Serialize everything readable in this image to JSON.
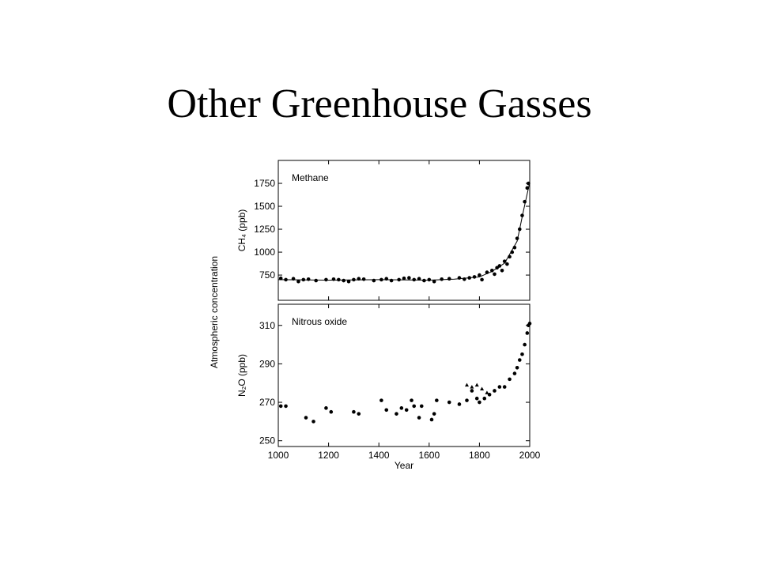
{
  "title": "Other Greenhouse Gasses",
  "shared_ylabel": "Atmospheric concentration",
  "chart_data": [
    {
      "type": "scatter",
      "annotation": "Methane",
      "ylabel": "CH₄ (ppb)",
      "xlim": [
        1000,
        2000
      ],
      "xticks": [
        1000,
        1200,
        1400,
        1600,
        1800,
        2000
      ],
      "show_xtick_labels": false,
      "ylim": [
        475,
        2000
      ],
      "yticks": [
        750,
        1000,
        1250,
        1500,
        1750
      ],
      "series": [
        {
          "kind": "points",
          "marker": "circle",
          "color": "#000000",
          "x": [
            1010,
            1030,
            1060,
            1080,
            1100,
            1120,
            1150,
            1190,
            1220,
            1240,
            1260,
            1280,
            1300,
            1320,
            1340,
            1380,
            1410,
            1430,
            1450,
            1480,
            1500,
            1520,
            1540,
            1560,
            1580,
            1600,
            1620,
            1650,
            1680,
            1720,
            1740,
            1760,
            1780,
            1800,
            1810,
            1830,
            1850,
            1860,
            1870,
            1880,
            1890,
            1900,
            1910,
            1920,
            1930,
            1940,
            1950,
            1960,
            1970,
            1980,
            1990,
            1995
          ],
          "values": [
            715,
            700,
            710,
            680,
            700,
            705,
            690,
            700,
            705,
            700,
            690,
            680,
            700,
            710,
            705,
            690,
            700,
            710,
            690,
            700,
            715,
            720,
            700,
            710,
            690,
            700,
            680,
            705,
            710,
            720,
            705,
            720,
            730,
            750,
            700,
            780,
            800,
            760,
            830,
            850,
            800,
            900,
            870,
            950,
            1000,
            1050,
            1150,
            1250,
            1400,
            1550,
            1700,
            1750
          ]
        },
        {
          "kind": "line",
          "color": "#000000",
          "x": [
            1000,
            1200,
            1400,
            1600,
            1700,
            1800,
            1850,
            1900,
            1950,
            1975,
            2000
          ],
          "values": [
            700,
            695,
            700,
            695,
            705,
            730,
            790,
            880,
            1120,
            1450,
            1760
          ]
        }
      ]
    },
    {
      "type": "scatter",
      "annotation": "Nitrous oxide",
      "ylabel": "N₂O (ppb)",
      "xlabel": "Year",
      "xlim": [
        1000,
        2000
      ],
      "xticks": [
        1000,
        1200,
        1400,
        1600,
        1800,
        2000
      ],
      "show_xtick_labels": true,
      "ylim": [
        247,
        321
      ],
      "yticks": [
        250,
        270,
        290,
        310
      ],
      "series": [
        {
          "kind": "points",
          "marker": "circle",
          "color": "#000000",
          "x": [
            1010,
            1030,
            1110,
            1140,
            1190,
            1210,
            1300,
            1320,
            1410,
            1430,
            1470,
            1490,
            1510,
            1530,
            1540,
            1560,
            1570,
            1610,
            1620,
            1630,
            1680,
            1720,
            1750,
            1770,
            1790,
            1800,
            1820,
            1840,
            1860,
            1880,
            1900,
            1920,
            1940,
            1950,
            1960,
            1970,
            1980,
            1990,
            1995,
            2000
          ],
          "values": [
            268,
            268,
            262,
            260,
            267,
            265,
            265,
            264,
            271,
            266,
            264,
            267,
            266,
            271,
            268,
            262,
            268,
            261,
            264,
            271,
            270,
            269,
            271,
            276,
            272,
            270,
            272,
            274,
            276,
            278,
            278,
            282,
            285,
            288,
            292,
            295,
            300,
            306,
            310,
            311
          ]
        },
        {
          "kind": "points",
          "marker": "triangle",
          "color": "#000000",
          "x": [
            1750,
            1770,
            1790,
            1810,
            1830
          ],
          "values": [
            279,
            278,
            279,
            277,
            275
          ]
        }
      ]
    }
  ]
}
